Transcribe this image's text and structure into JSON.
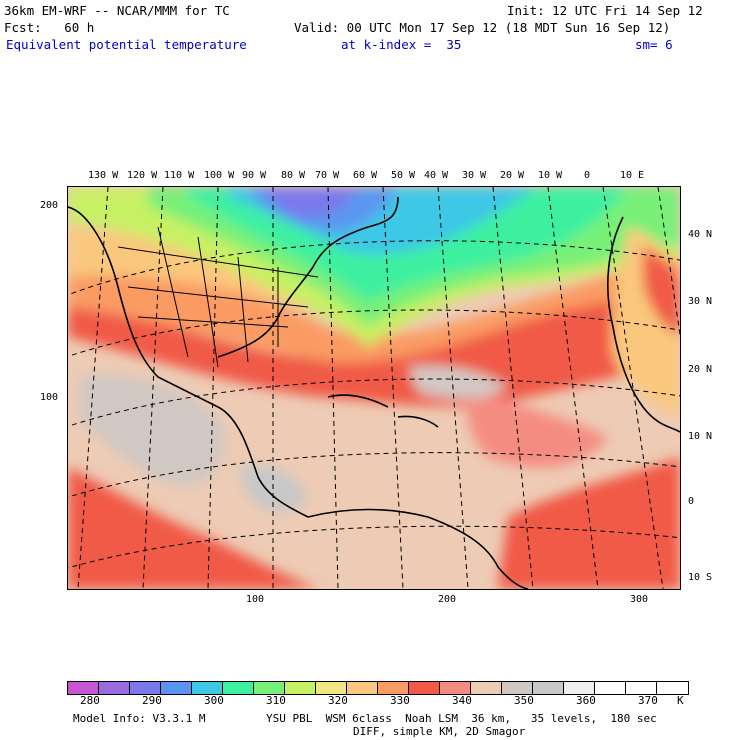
{
  "header": {
    "model_title": "36km EM-WRF -- NCAR/MMM for TC",
    "init": "Init: 12 UTC Fri 14 Sep 12",
    "fcst": "Fcst:   60 h",
    "valid": "Valid: 00 UTC Mon 17 Sep 12 (18 MDT Sun 16 Sep 12)",
    "field": "Equivalent potential temperature",
    "level": "at k-index =  35",
    "smoothing": "sm= 6"
  },
  "top_longitudes": [
    "130 W",
    "120 W",
    "110 W",
    "100 W",
    "90 W",
    "80 W",
    "70 W",
    "60 W",
    "50 W",
    "40 W",
    "30 W",
    "20 W",
    "10 W",
    "0",
    "10 E"
  ],
  "right_latitudes": [
    "40 N",
    "30 N",
    "20 N",
    "10 N",
    "0",
    "10 S"
  ],
  "left_grid_ticks": [
    "200",
    "100"
  ],
  "bottom_grid_ticks": [
    "100",
    "200",
    "300"
  ],
  "colorbar": {
    "unit": "K",
    "labels": [
      "280",
      "290",
      "300",
      "310",
      "320",
      "330",
      "340",
      "350",
      "360",
      "370"
    ],
    "colors": [
      "#c855d2",
      "#9b6ae0",
      "#7b78eb",
      "#5a96f0",
      "#3cc8e6",
      "#3cf0a0",
      "#78f078",
      "#c8f064",
      "#f0e682",
      "#fac87d",
      "#fa9b64",
      "#f05a46",
      "#f58c82",
      "#eecbb4",
      "#d2c8c3",
      "#c8c8c8",
      "#f0f0f0",
      "#ffffff",
      "#ffffff",
      "#ffffff"
    ]
  },
  "footer": {
    "model_info": "Model Info: V3.3.1 M",
    "physics": "YSU PBL  WSM 6class  Noah LSM  36 km,   35 levels,  180 sec",
    "diffusion": "DIFF, simple KM, 2D Smagor"
  }
}
